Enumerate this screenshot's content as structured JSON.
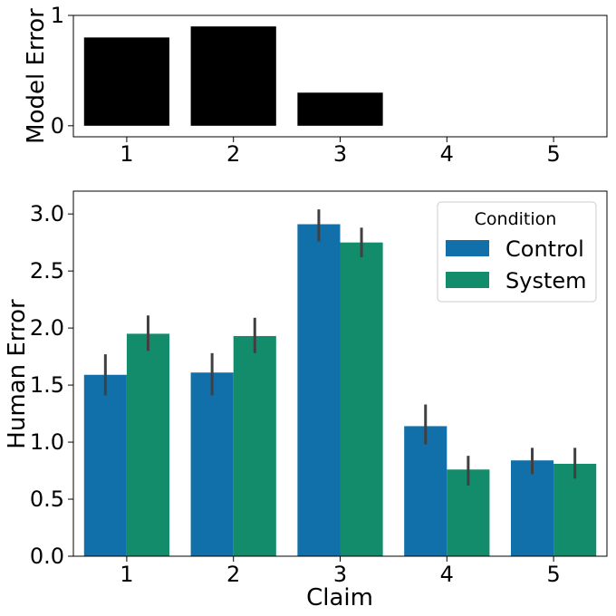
{
  "chart_data": [
    {
      "type": "bar",
      "categories": [
        "1",
        "2",
        "3",
        "4",
        "5"
      ],
      "values": [
        0.8,
        0.9,
        0.3,
        0,
        0
      ],
      "color": "#000000",
      "xlabel": "",
      "ylabel": "Model Error",
      "ylim": [
        -0.1,
        1.0
      ],
      "yticks": [
        0,
        1
      ],
      "ytick_labels": [
        "0",
        "1"
      ],
      "grid": false
    },
    {
      "type": "bar",
      "categories": [
        "1",
        "2",
        "3",
        "4",
        "5"
      ],
      "series": [
        {
          "name": "Control",
          "color": "#1170aa",
          "values": [
            1.59,
            1.61,
            2.91,
            1.14,
            0.84
          ],
          "err_low": [
            1.41,
            1.41,
            2.76,
            0.98,
            0.72
          ],
          "err_high": [
            1.77,
            1.78,
            3.04,
            1.33,
            0.95
          ]
        },
        {
          "name": "System",
          "color": "#138c6b",
          "values": [
            1.95,
            1.93,
            2.75,
            0.76,
            0.81
          ],
          "err_low": [
            1.8,
            1.78,
            2.62,
            0.62,
            0.68
          ],
          "err_high": [
            2.11,
            2.09,
            2.88,
            0.88,
            0.95
          ]
        }
      ],
      "xlabel": "Claim",
      "ylabel": "Human Error",
      "ylim": [
        0,
        3.2
      ],
      "yticks": [
        0,
        0.5,
        1.0,
        1.5,
        2.0,
        2.5,
        3.0
      ],
      "ytick_labels": [
        "0.0",
        "0.5",
        "1.0",
        "1.5",
        "2.0",
        "2.5",
        "3.0"
      ],
      "legend": {
        "title": "Condition",
        "position": "top-right",
        "items": [
          "Control",
          "System"
        ]
      },
      "grid": false
    }
  ]
}
